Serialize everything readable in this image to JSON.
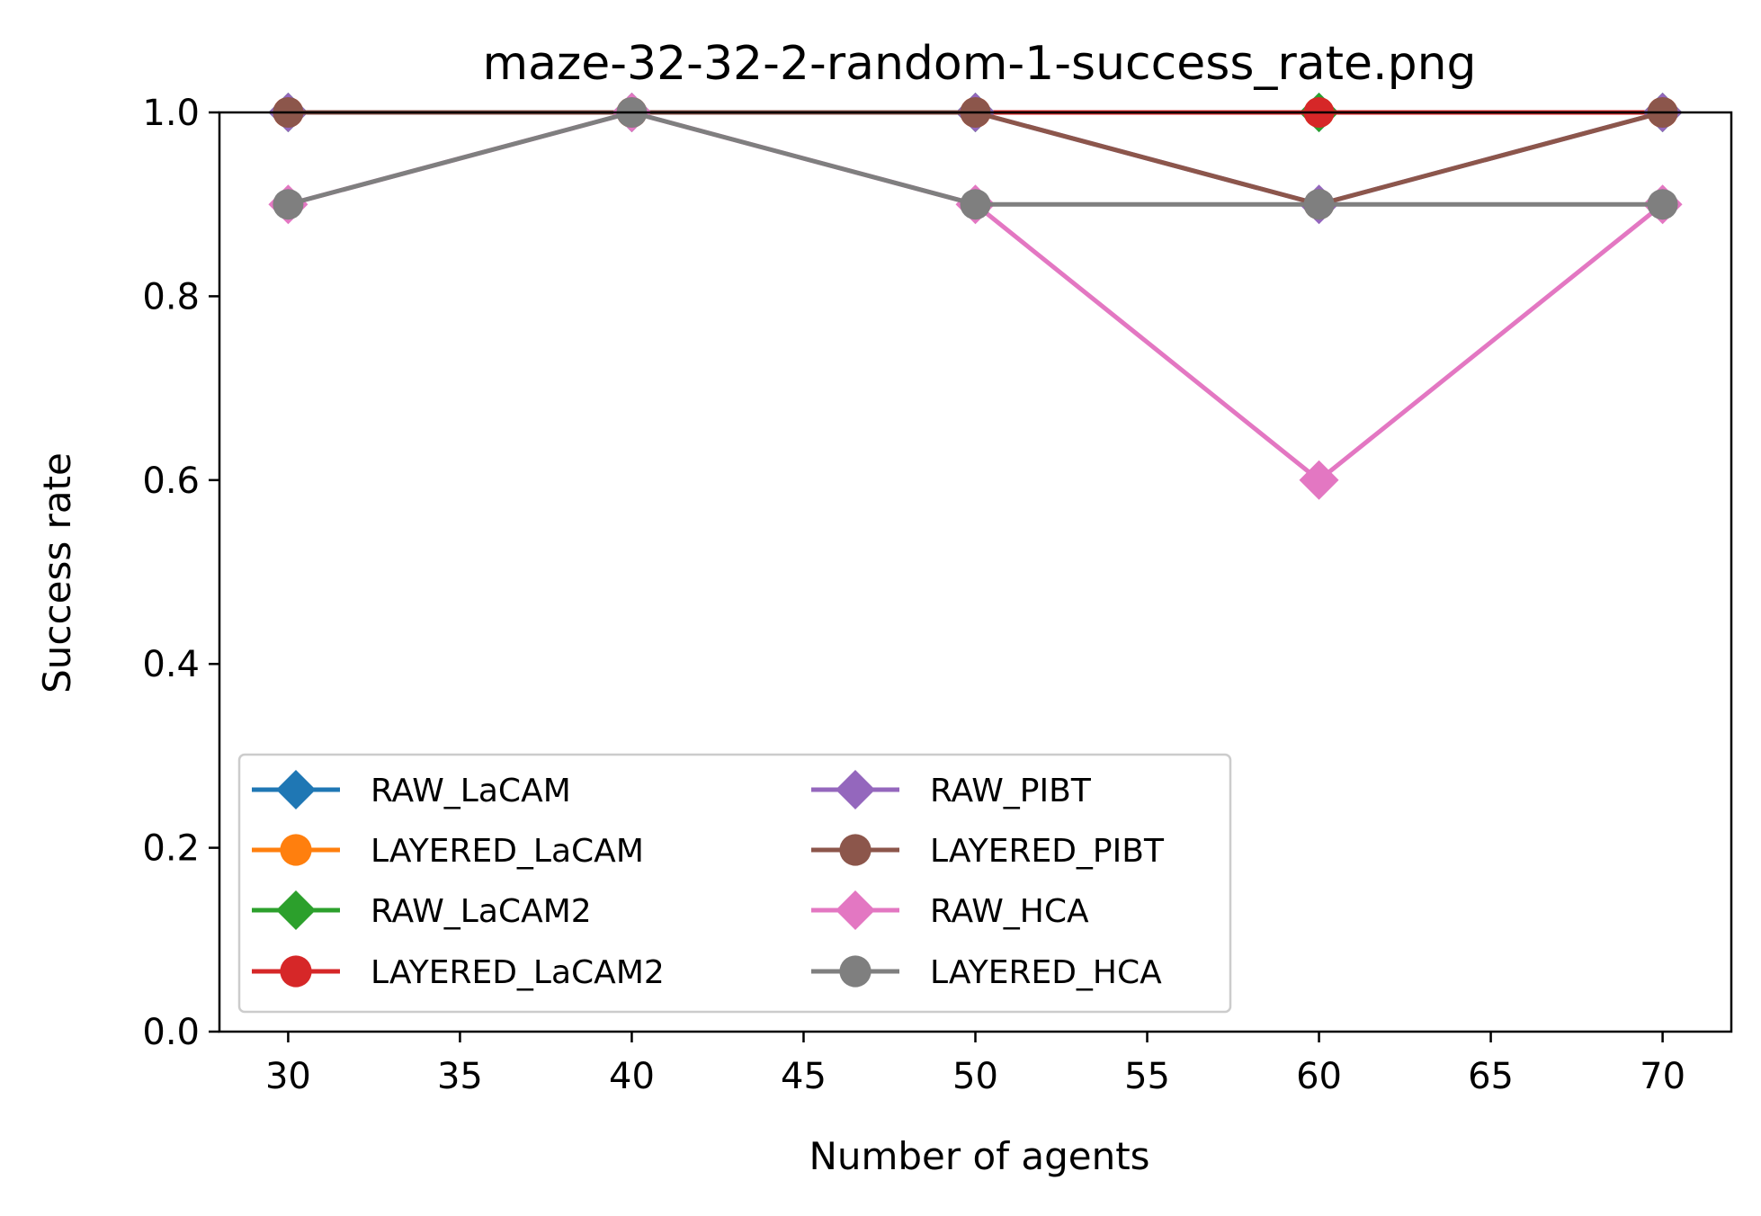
{
  "chart_data": {
    "type": "line",
    "title": "maze-32-32-2-random-1-success_rate.png",
    "xlabel": "Number of agents",
    "ylabel": "Success rate",
    "x": [
      30,
      40,
      50,
      60,
      70
    ],
    "xlim": [
      28,
      72
    ],
    "ylim": [
      0.0,
      1.0
    ],
    "xticks": [
      30,
      35,
      40,
      45,
      50,
      55,
      60,
      65,
      70
    ],
    "yticks": [
      0.0,
      0.2,
      0.4,
      0.6,
      0.8,
      1.0
    ],
    "xtick_labels": [
      "30",
      "35",
      "40",
      "45",
      "50",
      "55",
      "60",
      "65",
      "70"
    ],
    "ytick_labels": [
      "0.0",
      "0.2",
      "0.4",
      "0.6",
      "0.8",
      "1.0"
    ],
    "grid": false,
    "legend": {
      "placement": "lower-left",
      "columns": 2
    },
    "series": [
      {
        "name": "RAW_LaCAM",
        "color": "#1f77b4",
        "marker": "diamond",
        "values": [
          1.0,
          1.0,
          1.0,
          1.0,
          1.0
        ]
      },
      {
        "name": "LAYERED_LaCAM",
        "color": "#ff7f0e",
        "marker": "circle",
        "values": [
          1.0,
          1.0,
          1.0,
          1.0,
          1.0
        ]
      },
      {
        "name": "RAW_LaCAM2",
        "color": "#2ca02c",
        "marker": "diamond",
        "values": [
          1.0,
          1.0,
          1.0,
          1.0,
          1.0
        ]
      },
      {
        "name": "LAYERED_LaCAM2",
        "color": "#d62728",
        "marker": "circle",
        "values": [
          1.0,
          1.0,
          1.0,
          1.0,
          1.0
        ]
      },
      {
        "name": "RAW_PIBT",
        "color": "#9467bd",
        "marker": "diamond",
        "values": [
          1.0,
          1.0,
          1.0,
          0.9,
          1.0
        ]
      },
      {
        "name": "LAYERED_PIBT",
        "color": "#8c564b",
        "marker": "circle",
        "values": [
          1.0,
          1.0,
          1.0,
          0.9,
          1.0
        ]
      },
      {
        "name": "RAW_HCA",
        "color": "#e377c2",
        "marker": "diamond",
        "values": [
          0.9,
          1.0,
          0.9,
          0.6,
          0.9
        ]
      },
      {
        "name": "LAYERED_HCA",
        "color": "#7f7f7f",
        "marker": "circle",
        "values": [
          0.9,
          1.0,
          0.9,
          0.9,
          0.9
        ]
      }
    ]
  }
}
